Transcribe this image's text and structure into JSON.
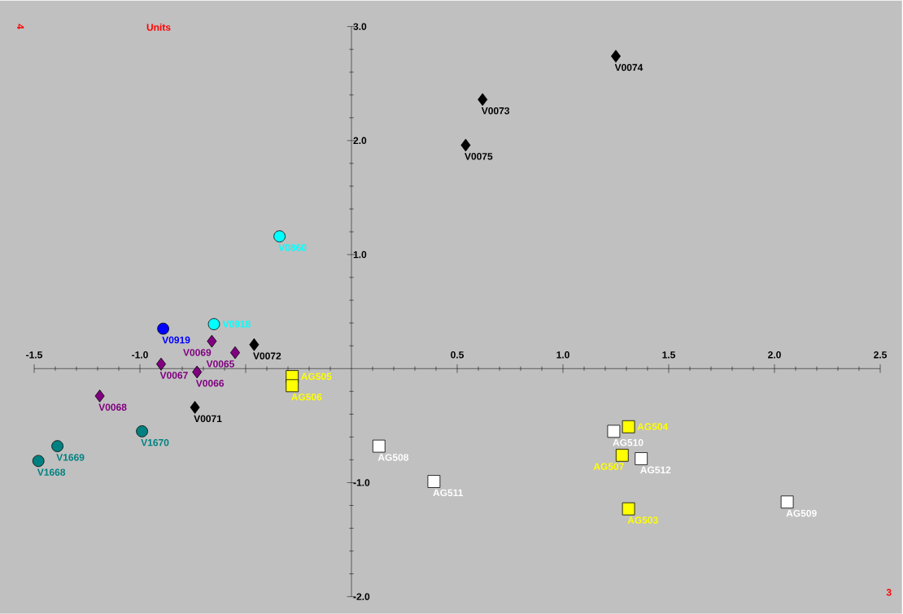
{
  "chart_data": {
    "type": "scatter",
    "title": "Units",
    "xlabel": "3",
    "ylabel": "4",
    "xlim": [
      -1.5,
      2.5
    ],
    "ylim": [
      -2.0,
      3.0
    ],
    "xticks": [
      {
        "value": -1.5,
        "label": "-1.5"
      },
      {
        "value": -1.0,
        "label": "-1.0"
      },
      {
        "value": -0.5,
        "label": null
      },
      {
        "value": 0,
        "label": null
      },
      {
        "value": 0.5,
        "label": "0.5"
      },
      {
        "value": 1.0,
        "label": "1.0"
      },
      {
        "value": 1.5,
        "label": "1.5"
      },
      {
        "value": 2.0,
        "label": "2.0"
      },
      {
        "value": 2.5,
        "label": "2.5"
      }
    ],
    "yticks": [
      {
        "value": -2.0,
        "label": "-2.0"
      },
      {
        "value": -1.0,
        "label": "-1.0"
      },
      {
        "value": 0,
        "label": null
      },
      {
        "value": 1.0,
        "label": "1.0"
      },
      {
        "value": 2.0,
        "label": "2.0"
      },
      {
        "value": 3.0,
        "label": "3.0"
      }
    ],
    "grid": false,
    "series": [
      {
        "marker": "diamond",
        "color": "#000000",
        "x": [
          1.25,
          0.62,
          0.54,
          -0.46,
          -0.74
        ],
        "values": [
          2.74,
          2.36,
          1.96,
          0.21,
          -0.34
        ]
      },
      {
        "marker": "diamond",
        "color": "#800080",
        "x": [
          -0.66,
          -0.55,
          -0.9,
          -0.73,
          -1.19
        ],
        "values": [
          0.24,
          0.14,
          0.04,
          -0.03,
          -0.24
        ]
      },
      {
        "marker": "circle",
        "color": "#00ffff",
        "x": [
          -0.34,
          -0.65
        ],
        "values": [
          1.16,
          0.39
        ]
      },
      {
        "marker": "circle",
        "color": "#0000ff",
        "x": [
          -0.89
        ],
        "values": [
          0.35
        ]
      },
      {
        "marker": "circle",
        "color": "#008080",
        "x": [
          -0.99,
          -1.39,
          -1.48
        ],
        "values": [
          -0.55,
          -0.68,
          -0.81
        ]
      },
      {
        "marker": "square",
        "color": "#ffffff",
        "x": [
          1.24,
          1.37,
          0.13,
          0.39,
          2.06
        ],
        "values": [
          -0.55,
          -0.79,
          -0.68,
          -0.99,
          -1.17
        ]
      },
      {
        "marker": "square",
        "color": "#ffff00",
        "x": [
          -0.28,
          -0.28,
          1.31,
          1.28,
          1.31
        ],
        "values": [
          -0.07,
          -0.15,
          -0.51,
          -0.76,
          -1.23
        ]
      }
    ],
    "annotations": [
      {
        "text": "V0074",
        "x": 1.25,
        "y": 2.74
      },
      {
        "text": "V0073",
        "x": 0.62,
        "y": 2.36
      },
      {
        "text": "V0075",
        "x": 0.54,
        "y": 1.96
      },
      {
        "text": "V0072",
        "x": -0.46,
        "y": 0.21
      },
      {
        "text": "V0071",
        "x": -0.74,
        "y": -0.34
      },
      {
        "text": "V0069",
        "x": -0.66,
        "y": 0.24
      },
      {
        "text": "V0065",
        "x": -0.55,
        "y": 0.14
      },
      {
        "text": "V0067",
        "x": -0.9,
        "y": 0.04
      },
      {
        "text": "V0066",
        "x": -0.73,
        "y": -0.03
      },
      {
        "text": "V0068",
        "x": -1.19,
        "y": -0.24
      },
      {
        "text": "V0860",
        "x": -0.34,
        "y": 1.16
      },
      {
        "text": "V0918",
        "x": -0.65,
        "y": 0.39
      },
      {
        "text": "V0919",
        "x": -0.89,
        "y": 0.35
      },
      {
        "text": "V1670",
        "x": -0.99,
        "y": -0.55
      },
      {
        "text": "V1669",
        "x": -1.39,
        "y": -0.68
      },
      {
        "text": "V1668",
        "x": -1.48,
        "y": -0.81
      },
      {
        "text": "AG510",
        "x": 1.24,
        "y": -0.55
      },
      {
        "text": "AG512",
        "x": 1.37,
        "y": -0.79
      },
      {
        "text": "AG508",
        "x": 0.13,
        "y": -0.68
      },
      {
        "text": "AG511",
        "x": 0.39,
        "y": -0.99
      },
      {
        "text": "AG509",
        "x": 2.06,
        "y": -1.17
      },
      {
        "text": "AG505",
        "x": -0.28,
        "y": -0.07
      },
      {
        "text": "AG506",
        "x": -0.28,
        "y": -0.15
      },
      {
        "text": "AG504",
        "x": 1.31,
        "y": -0.51
      },
      {
        "text": "AG507",
        "x": 1.28,
        "y": -0.76
      },
      {
        "text": "AG503",
        "x": 1.31,
        "y": -1.23
      }
    ]
  }
}
